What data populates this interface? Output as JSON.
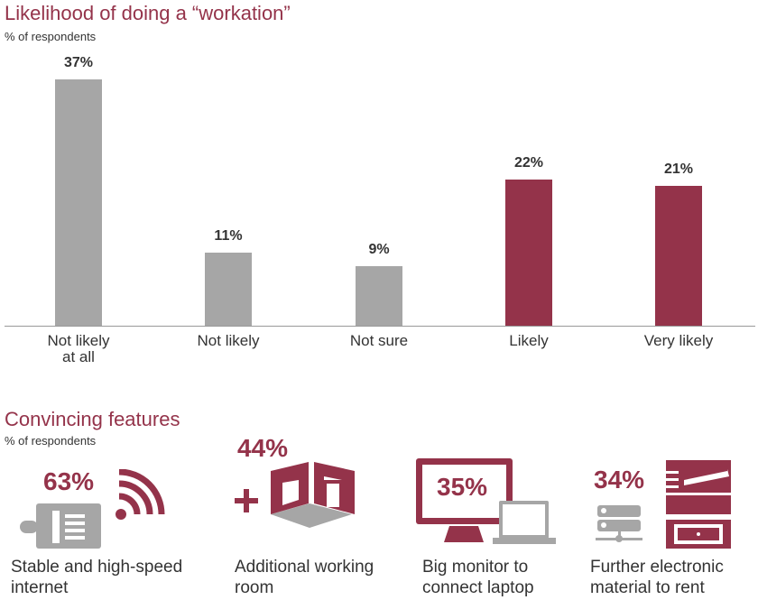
{
  "chart_data": {
    "type": "bar",
    "title": "Likelihood of doing a “workation”",
    "ylabel": "% of respondents",
    "categories": [
      "Not likely at all",
      "Not likely",
      "Not sure",
      "Likely",
      "Very likely"
    ],
    "category_lines": [
      [
        "Not likely",
        "at all"
      ],
      [
        "Not likely"
      ],
      [
        "Not sure"
      ],
      [
        "Likely"
      ],
      [
        "Very likely"
      ]
    ],
    "values": [
      37,
      11,
      9,
      22,
      21
    ],
    "value_labels": [
      "37%",
      "11%",
      "9%",
      "22%",
      "21%"
    ],
    "colors": [
      "#a6a6a6",
      "#a6a6a6",
      "#a6a6a6",
      "#94334a",
      "#94334a"
    ],
    "ylim": [
      0,
      37
    ],
    "grid": false
  },
  "features": {
    "title": "Convincing features",
    "subtitle": "% of respondents",
    "items": [
      {
        "value": "63%",
        "label_lines": [
          "Stable and high-speed",
          "internet"
        ],
        "icon": "ethernet-wifi-icon"
      },
      {
        "value": "44%",
        "label_lines": [
          "Additional working",
          "room"
        ],
        "icon": "room-icon"
      },
      {
        "value": "35%",
        "label_lines": [
          "Big monitor to",
          "connect laptop"
        ],
        "icon": "monitor-laptop-icon"
      },
      {
        "value": "34%",
        "label_lines": [
          "Further electronic",
          "material to rent"
        ],
        "icon": "printer-server-icon"
      }
    ]
  },
  "colors": {
    "accent": "#94334a",
    "gray": "#a6a6a6"
  }
}
